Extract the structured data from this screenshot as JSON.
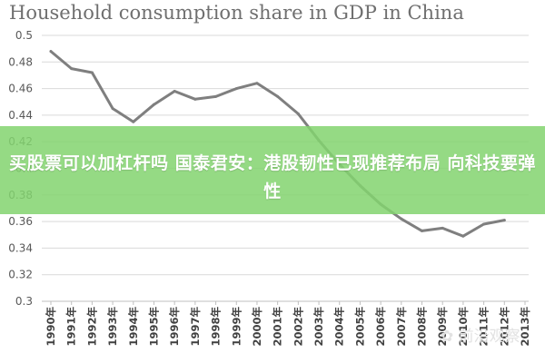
{
  "chart_data": {
    "type": "line",
    "title": "Household consumption share in GDP in China",
    "categories": [
      "1990年",
      "1991年",
      "1992年",
      "1993年",
      "1994年",
      "1995年",
      "1996年",
      "1997年",
      "1998年",
      "1999年",
      "2000年",
      "2001年",
      "2002年",
      "2003年",
      "2004年",
      "2005年",
      "2006年",
      "2007年",
      "2008年",
      "2009年",
      "2010年",
      "2011年",
      "2012年",
      "2013年"
    ],
    "values": [
      0.488,
      0.475,
      0.472,
      0.445,
      0.435,
      0.448,
      0.458,
      0.452,
      0.454,
      0.46,
      0.464,
      0.454,
      0.441,
      0.421,
      0.403,
      0.387,
      0.373,
      0.362,
      0.353,
      0.355,
      0.349,
      0.358,
      0.361,
      null
    ],
    "ylim": [
      0.3,
      0.5
    ],
    "yticks": [
      "0.5",
      "0.48",
      "0.46",
      "0.44",
      "0.42",
      "0.4",
      "0.38",
      "0.36",
      "0.34",
      "0.32",
      "0.3"
    ],
    "xlabel": "",
    "ylabel": "",
    "grid": "horizontal",
    "line_color": "#7f7f7f",
    "grid_color": "#d9d9d9"
  },
  "banner": {
    "text": "买股票可以加杠杆吗 国泰君安：港股韧性已现推荐布局 向科技要弹性",
    "color": "#82d46e"
  },
  "watermark": {
    "text": "✿ 前沿观察"
  }
}
